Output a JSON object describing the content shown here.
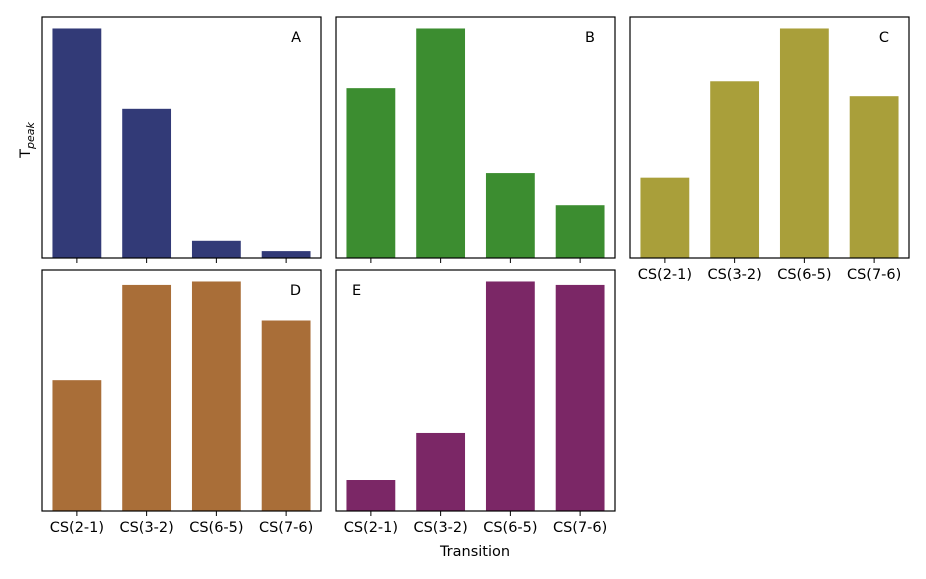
{
  "figure": {
    "ylabel_main": "T",
    "ylabel_sub": "peak",
    "xlabel": "Transition"
  },
  "chart_data": [
    {
      "type": "bar",
      "panel": "A",
      "color": "#323a77",
      "categories": [
        "CS(2-1)",
        "CS(3-2)",
        "CS(6-5)",
        "CS(7-6)"
      ],
      "values": [
        1.0,
        0.65,
        0.075,
        0.03
      ],
      "ylim": [
        0,
        1.05
      ],
      "tick_labels_shown": false
    },
    {
      "type": "bar",
      "panel": "B",
      "color": "#3c8d30",
      "categories": [
        "CS(2-1)",
        "CS(3-2)",
        "CS(6-5)",
        "CS(7-6)"
      ],
      "values": [
        0.74,
        1.0,
        0.37,
        0.23
      ],
      "ylim": [
        0,
        1.05
      ],
      "tick_labels_shown": false
    },
    {
      "type": "bar",
      "panel": "C",
      "color": "#a99f3a",
      "categories": [
        "CS(2-1)",
        "CS(3-2)",
        "CS(6-5)",
        "CS(7-6)"
      ],
      "values": [
        0.35,
        0.77,
        1.0,
        0.705
      ],
      "ylim": [
        0,
        1.05
      ],
      "tick_labels_shown": true
    },
    {
      "type": "bar",
      "panel": "D",
      "color": "#a96e38",
      "categories": [
        "CS(2-1)",
        "CS(3-2)",
        "CS(6-5)",
        "CS(7-6)"
      ],
      "values": [
        0.57,
        0.985,
        1.0,
        0.83
      ],
      "ylim": [
        0,
        1.05
      ],
      "tick_labels_shown": true
    },
    {
      "type": "bar",
      "panel": "E",
      "color": "#7b2766",
      "categories": [
        "CS(2-1)",
        "CS(3-2)",
        "CS(6-5)",
        "CS(7-6)"
      ],
      "values": [
        0.135,
        0.34,
        1.0,
        0.985
      ],
      "ylim": [
        0,
        1.05
      ],
      "tick_labels_shown": true
    }
  ]
}
